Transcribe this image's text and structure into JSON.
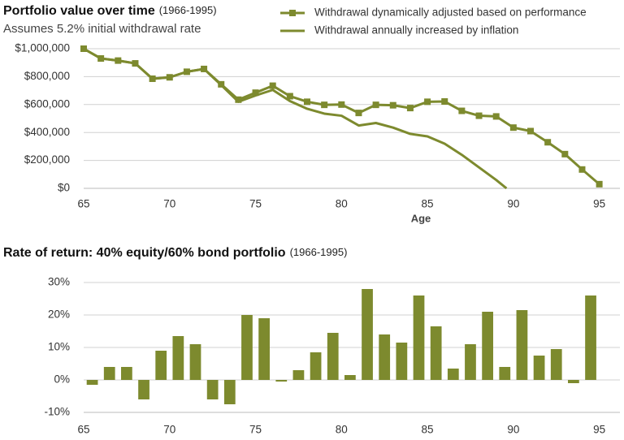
{
  "chart_data": [
    {
      "type": "line",
      "title": "Portfolio value over time",
      "title_period": "(1966-1995)",
      "subtitle": "Assumes 5.2% initial withdrawal rate",
      "x_label": "Age",
      "legend_position": "top-right",
      "series": [
        {
          "name": "Withdrawal dynamically adjusted based on performance",
          "color": "#7d8a2e",
          "marker": "square",
          "x": [
            65,
            66,
            67,
            68,
            69,
            70,
            71,
            72,
            73,
            74,
            75,
            76,
            77,
            78,
            79,
            80,
            81,
            82,
            83,
            84,
            85,
            86,
            87,
            88,
            89,
            90,
            91,
            92,
            93,
            94,
            95
          ],
          "values": [
            1000000,
            930000,
            915000,
            895000,
            785000,
            795000,
            835000,
            855000,
            745000,
            635000,
            685000,
            735000,
            660000,
            620000,
            598000,
            600000,
            540000,
            598000,
            595000,
            575000,
            620000,
            622000,
            555000,
            520000,
            515000,
            435000,
            410000,
            330000,
            245000,
            135000,
            30000
          ]
        },
        {
          "name": "Withdrawal annually increased by inflation",
          "color": "#7d8a2e",
          "marker": "none",
          "x": [
            65,
            66,
            67,
            68,
            69,
            70,
            71,
            72,
            73,
            74,
            75,
            76,
            77,
            78,
            79,
            80,
            81,
            82,
            83,
            84,
            85,
            86,
            87,
            88,
            89,
            89.6
          ],
          "values": [
            1000000,
            930000,
            915000,
            895000,
            785000,
            795000,
            835000,
            855000,
            740000,
            620000,
            665000,
            705000,
            625000,
            570000,
            535000,
            520000,
            450000,
            468000,
            435000,
            390000,
            372000,
            320000,
            240000,
            150000,
            60000,
            0
          ]
        }
      ],
      "xlim": [
        65,
        96.2
      ],
      "xticks": [
        65,
        70,
        75,
        80,
        85,
        90,
        95
      ],
      "ylim": [
        0,
        1000000
      ],
      "yticks": [
        {
          "value": 0,
          "label": "$0"
        },
        {
          "value": 200000,
          "label": "$200,000"
        },
        {
          "value": 400000,
          "label": "$400,000"
        },
        {
          "value": 600000,
          "label": "$600,000"
        },
        {
          "value": 800000,
          "label": "$800,000"
        },
        {
          "value": 1000000,
          "label": "$1,000,000"
        }
      ],
      "grid": true
    },
    {
      "type": "bar",
      "title": "Rate of return: 40% equity/60% bond portfolio",
      "title_period": "(1966-1995)",
      "color": "#7d8a2e",
      "x": [
        65.5,
        66.5,
        67.5,
        68.5,
        69.5,
        70.5,
        71.5,
        72.5,
        73.5,
        74.5,
        75.5,
        76.5,
        77.5,
        78.5,
        79.5,
        80.5,
        81.5,
        82.5,
        83.5,
        84.5,
        85.5,
        86.5,
        87.5,
        88.5,
        89.5,
        90.5,
        91.5,
        92.5,
        93.5,
        94.5
      ],
      "values": [
        -1.5,
        4,
        4,
        -6,
        9,
        13.5,
        11,
        -6,
        -7.5,
        20,
        19,
        -0.5,
        3,
        8.5,
        14.5,
        1.5,
        28,
        14,
        11.5,
        26,
        16.5,
        3.5,
        11,
        21,
        4,
        21.5,
        7.5,
        9.5,
        -1,
        26
      ],
      "xlim": [
        65,
        96.2
      ],
      "xticks": [
        65,
        70,
        75,
        80,
        85,
        90,
        95
      ],
      "ylim": [
        -10,
        30
      ],
      "yticks": [
        {
          "value": -10,
          "label": "-10%"
        },
        {
          "value": 0,
          "label": "0%"
        },
        {
          "value": 10,
          "label": "10%"
        },
        {
          "value": 20,
          "label": "20%"
        },
        {
          "value": 30,
          "label": "30%"
        }
      ],
      "grid": true
    }
  ]
}
